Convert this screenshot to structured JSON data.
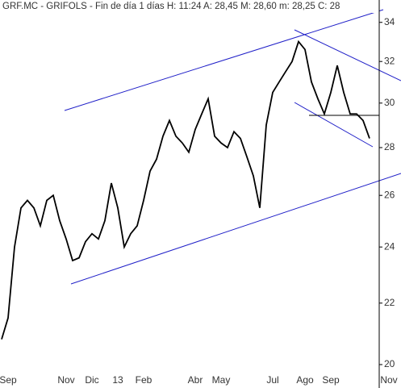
{
  "chart_data": {
    "type": "line",
    "title": "GRF.MC - GRIFOLS - Fin de día 1 días H: 11:24 A: 28,45 M: 28,60 m: 28,25 C: 28",
    "categories": [
      null,
      "Sep",
      null,
      null,
      null,
      null,
      null,
      null,
      null,
      null,
      "Nov",
      null,
      null,
      null,
      "Dic",
      null,
      null,
      null,
      "13",
      null,
      null,
      null,
      "Feb",
      null,
      null,
      null,
      null,
      null,
      null,
      null,
      "Abr",
      null,
      null,
      null,
      "May",
      null,
      null,
      null,
      null,
      null,
      null,
      null,
      "Jul",
      null,
      null,
      null,
      null,
      "Ago",
      null,
      null,
      null,
      "Sep",
      null,
      null,
      null,
      null,
      null,
      null,
      null,
      null,
      "Nov"
    ],
    "series": [
      {
        "name": "GRF.MC",
        "color": "#000000",
        "values": [
          20.8,
          21.5,
          24,
          25.5,
          25.8,
          25.5,
          24.8,
          25.8,
          26.0,
          25.0,
          24.3,
          23.5,
          23.6,
          24.2,
          24.5,
          24.3,
          25.0,
          26.5,
          25.5,
          24.0,
          24.5,
          24.8,
          25.8,
          27.0,
          27.5,
          28.5,
          29.2,
          28.5,
          28.2,
          27.8,
          28.8,
          29.5,
          30.2,
          28.5,
          28.2,
          28.0,
          28.7,
          28.4,
          27.6,
          26.8,
          25.5,
          29.0,
          30.5,
          31.0,
          31.5,
          32.0,
          33.0,
          32.6,
          31.0,
          30.2,
          29.5,
          30.5,
          31.8,
          30.5,
          29.5,
          29.5,
          29.2,
          28.4,
          null,
          null,
          null
        ]
      }
    ],
    "ylim": [
      19.8,
      35.2
    ],
    "yticks": [
      20,
      22,
      24,
      26,
      28,
      30,
      32,
      34
    ],
    "log_y": true
  }
}
